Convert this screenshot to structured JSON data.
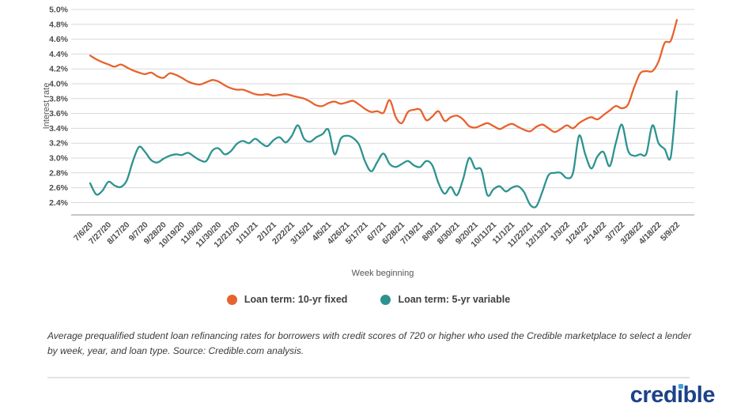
{
  "chart_data": {
    "type": "line",
    "title": "",
    "xlabel": "Week beginning",
    "ylabel": "Interest rate",
    "ylim": [
      2.4,
      5.0
    ],
    "grid": true,
    "legend_position": "bottom",
    "y_ticks": [
      "5.0%",
      "4.8%",
      "4.6%",
      "4.4%",
      "4.2%",
      "4.0%",
      "3.8%",
      "3.6%",
      "3.4%",
      "3.2%",
      "3.0%",
      "2.8%",
      "2.6%",
      "2.4%"
    ],
    "x_tick_labels": [
      "7/6/20",
      "7/27/20",
      "8/17/20",
      "9/7/20",
      "9/28/20",
      "10/19/20",
      "11/9/20",
      "11/30/20",
      "12/21/20",
      "1/11/21",
      "2/1/21",
      "2/22/21",
      "3/15/21",
      "4/5/21",
      "4/26/21",
      "5/17/21",
      "6/7/21",
      "6/28/21",
      "7/19/21",
      "8/9/21",
      "8/30/21",
      "9/20/21",
      "10/11/21",
      "11/1/21",
      "11/22/21",
      "12/13/21",
      "1/3/22",
      "1/24/22",
      "2/14/22",
      "3/7/22",
      "3/28/22",
      "4/18/22",
      "5/9/22"
    ],
    "weeks_per_tick": 3,
    "series": [
      {
        "name": "Loan term: 10-yr fixed",
        "color": "#e8622d",
        "values": [
          4.38,
          4.33,
          4.29,
          4.26,
          4.23,
          4.26,
          4.22,
          4.18,
          4.15,
          4.13,
          4.15,
          4.1,
          4.08,
          4.14,
          4.12,
          4.08,
          4.03,
          4.0,
          3.99,
          4.02,
          4.05,
          4.03,
          3.98,
          3.94,
          3.92,
          3.92,
          3.89,
          3.86,
          3.85,
          3.86,
          3.84,
          3.85,
          3.86,
          3.84,
          3.82,
          3.8,
          3.76,
          3.71,
          3.7,
          3.74,
          3.76,
          3.73,
          3.75,
          3.77,
          3.72,
          3.66,
          3.62,
          3.63,
          3.61,
          3.78,
          3.55,
          3.47,
          3.62,
          3.65,
          3.65,
          3.51,
          3.56,
          3.63,
          3.5,
          3.55,
          3.57,
          3.52,
          3.43,
          3.41,
          3.44,
          3.47,
          3.43,
          3.39,
          3.43,
          3.46,
          3.42,
          3.38,
          3.36,
          3.42,
          3.45,
          3.4,
          3.35,
          3.39,
          3.44,
          3.4,
          3.47,
          3.52,
          3.55,
          3.52,
          3.58,
          3.64,
          3.7,
          3.67,
          3.72,
          3.95,
          4.14,
          4.17,
          4.17,
          4.3,
          4.55,
          4.58,
          4.86
        ]
      },
      {
        "name": "Loan term: 5-yr variable",
        "color": "#2d9390",
        "values": [
          2.66,
          2.51,
          2.56,
          2.68,
          2.63,
          2.61,
          2.7,
          2.96,
          3.15,
          3.08,
          2.97,
          2.94,
          2.99,
          3.03,
          3.05,
          3.04,
          3.07,
          3.02,
          2.97,
          2.96,
          3.1,
          3.13,
          3.05,
          3.09,
          3.19,
          3.23,
          3.2,
          3.26,
          3.2,
          3.16,
          3.24,
          3.28,
          3.21,
          3.3,
          3.44,
          3.26,
          3.22,
          3.28,
          3.32,
          3.38,
          3.05,
          3.26,
          3.3,
          3.27,
          3.18,
          2.95,
          2.82,
          2.95,
          3.06,
          2.92,
          2.88,
          2.92,
          2.96,
          2.9,
          2.88,
          2.96,
          2.9,
          2.66,
          2.52,
          2.61,
          2.5,
          2.71,
          3.0,
          2.86,
          2.84,
          2.5,
          2.58,
          2.62,
          2.55,
          2.6,
          2.62,
          2.54,
          2.37,
          2.35,
          2.55,
          2.77,
          2.8,
          2.8,
          2.73,
          2.8,
          3.3,
          3.05,
          2.86,
          3.02,
          3.08,
          2.89,
          3.2,
          3.45,
          3.1,
          3.03,
          3.05,
          3.06,
          3.44,
          3.2,
          3.12,
          3.02,
          3.9
        ]
      }
    ]
  },
  "caption": {
    "text": "Average prequalified student loan refinancing rates for borrowers with credit scores of 720 or higher who used the Credible marketplace to select a lender by week, year, and loan type. Source: Credible.com analysis."
  },
  "footer": {
    "logo_text": "credible",
    "logo_color": "#1d4289",
    "logo_dot_color": "#459fd6"
  }
}
